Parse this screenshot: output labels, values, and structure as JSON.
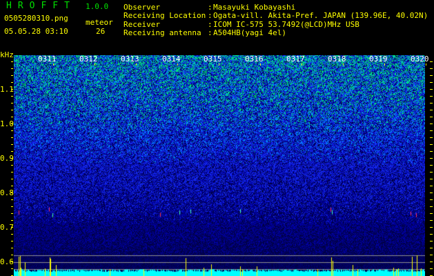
{
  "app": {
    "title": "HROFFT",
    "version": "1.0.0"
  },
  "file": {
    "name": "0505280310.png",
    "datetime": "05.05.28 03:10"
  },
  "meteor": {
    "label": "meteor",
    "count": "26"
  },
  "info": [
    {
      "label": "Observer",
      "value": "Masayuki Kobayashi"
    },
    {
      "label": "Receiving Location",
      "value": "Ogata-vill. Akita-Pref. JAPAN (139.96E, 40.02N)"
    },
    {
      "label": "Receiver",
      "value": "ICOM IC-575 53.7492(@LCD)MHz USB"
    },
    {
      "label": "Receiving antenna",
      "value": "A504HB(yagi 4el)"
    }
  ],
  "axis": {
    "y_unit": "kHz",
    "y_ticks": [
      "1.1",
      "1.0",
      "0.9",
      "0.8",
      "0.7",
      "0.6"
    ],
    "x_ticks": [
      "0311",
      "0312",
      "0313",
      "0314",
      "0315",
      "0316",
      "0317",
      "0318",
      "0319",
      "0320"
    ]
  },
  "colors": {
    "text": "#ffff00",
    "title": "#00e000",
    "noise_low": "#000080",
    "noise_high": "#00ff80",
    "echo": "#ff3030",
    "level": "#00ffff",
    "peak": "#ffff00"
  }
}
